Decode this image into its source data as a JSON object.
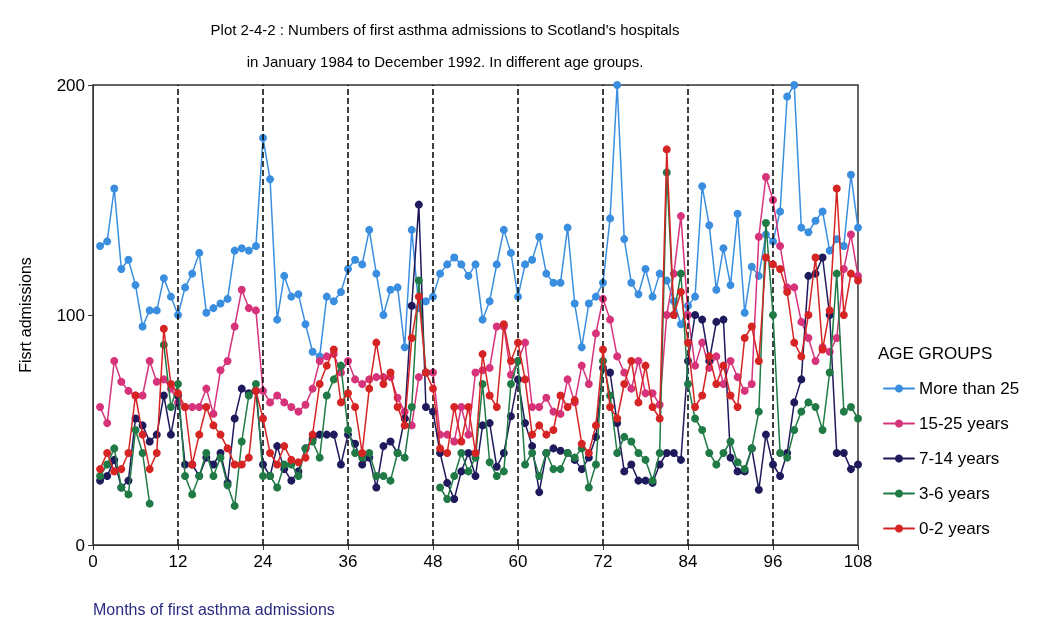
{
  "chart_data": {
    "type": "line",
    "title": "Plot 2-4-2 : Numbers of first asthma admissions to Scotland's hospitals\nin January 1984 to December 1992. In different age groups.",
    "xlabel": "Months of first asthma admissions",
    "ylabel": "Fisrt admissions",
    "legend_title": "AGE GROUPS",
    "legend": "right",
    "marker": "circle",
    "line_style": "solid",
    "grid": false,
    "x": [
      1,
      2,
      3,
      4,
      5,
      6,
      7,
      8,
      9,
      10,
      11,
      12,
      13,
      14,
      15,
      16,
      17,
      18,
      19,
      20,
      21,
      22,
      23,
      24,
      25,
      26,
      27,
      28,
      29,
      30,
      31,
      32,
      33,
      34,
      35,
      36,
      37,
      38,
      39,
      40,
      41,
      42,
      43,
      44,
      45,
      46,
      47,
      48,
      49,
      50,
      51,
      52,
      53,
      54,
      55,
      56,
      57,
      58,
      59,
      60,
      61,
      62,
      63,
      64,
      65,
      66,
      67,
      68,
      69,
      70,
      71,
      72,
      73,
      74,
      75,
      76,
      77,
      78,
      79,
      80,
      81,
      82,
      83,
      84,
      85,
      86,
      87,
      88,
      89,
      90,
      91,
      92,
      93,
      94,
      95,
      96,
      97,
      98,
      99,
      100,
      101,
      102,
      103,
      104,
      105,
      106,
      107,
      108
    ],
    "xlim": [
      0,
      108
    ],
    "xticks": [
      0,
      12,
      24,
      36,
      48,
      60,
      72,
      84,
      96,
      108
    ],
    "ylim": [
      0,
      200
    ],
    "yticks": [
      0,
      100,
      200
    ],
    "series": [
      {
        "name": "More than 25",
        "color": "#3a8ee0",
        "values": [
          130,
          132,
          155,
          120,
          124,
          113,
          95,
          102,
          102,
          116,
          108,
          100,
          112,
          118,
          127,
          101,
          103,
          105,
          107,
          128,
          129,
          128,
          130,
          177,
          159,
          98,
          117,
          108,
          109,
          96,
          84,
          82,
          108,
          106,
          110,
          120,
          124,
          122,
          137,
          118,
          100,
          111,
          112,
          86,
          137,
          103,
          106,
          108,
          118,
          122,
          125,
          122,
          117,
          122,
          98,
          106,
          122,
          137,
          127,
          108,
          122,
          124,
          134,
          118,
          114,
          114,
          138,
          105,
          86,
          105,
          108,
          114,
          142,
          200,
          133,
          114,
          109,
          120,
          108,
          118,
          115,
          106,
          96,
          104,
          108,
          156,
          139,
          111,
          129,
          113,
          144,
          101,
          121,
          117,
          135,
          132,
          145,
          195,
          200,
          138,
          136,
          141,
          145,
          128,
          133,
          130,
          161,
          138
        ]
      },
      {
        "name": "15-25 years",
        "color": "#d6337a",
        "values": [
          60,
          53,
          80,
          71,
          67,
          65,
          65,
          80,
          71,
          72,
          68,
          62,
          60,
          60,
          60,
          68,
          57,
          76,
          80,
          95,
          111,
          103,
          102,
          67,
          62,
          65,
          62,
          60,
          58,
          61,
          68,
          80,
          82,
          83,
          75,
          80,
          72,
          70,
          72,
          73,
          73,
          73,
          64,
          58,
          52,
          73,
          75,
          75,
          48,
          48,
          45,
          60,
          48,
          75,
          76,
          77,
          95,
          95,
          74,
          80,
          88,
          60,
          60,
          64,
          58,
          57,
          72,
          62,
          78,
          70,
          92,
          107,
          98,
          82,
          75,
          68,
          80,
          66,
          66,
          61,
          100,
          118,
          143,
          100,
          78,
          88,
          77,
          82,
          70,
          80,
          73,
          67,
          70,
          134,
          160,
          150,
          130,
          112,
          112,
          97,
          90,
          80,
          86,
          84,
          90,
          120,
          135,
          117
        ]
      },
      {
        "name": "7-14 years",
        "color": "#1f1a5c",
        "values": [
          28,
          30,
          37,
          25,
          28,
          55,
          52,
          45,
          48,
          65,
          48,
          65,
          35,
          35,
          30,
          38,
          35,
          40,
          27,
          55,
          68,
          66,
          67,
          35,
          30,
          43,
          33,
          28,
          32,
          42,
          46,
          48,
          48,
          48,
          35,
          48,
          44,
          35,
          38,
          25,
          43,
          45,
          40,
          55,
          104,
          148,
          60,
          58,
          40,
          27,
          20,
          32,
          40,
          30,
          52,
          53,
          34,
          40,
          56,
          72,
          53,
          43,
          23,
          40,
          42,
          41,
          40,
          37,
          33,
          38,
          47,
          77,
          75,
          53,
          32,
          35,
          28,
          28,
          27,
          35,
          40,
          40,
          37,
          80,
          100,
          98,
          80,
          97,
          98,
          38,
          32,
          32,
          42,
          24,
          48,
          35,
          30,
          40,
          62,
          72,
          117,
          118,
          125,
          100,
          40,
          40,
          33,
          35
        ]
      },
      {
        "name": "3-6 years",
        "color": "#1f7a45",
        "values": [
          30,
          35,
          42,
          25,
          22,
          50,
          40,
          18,
          null,
          87,
          60,
          70,
          30,
          22,
          30,
          40,
          30,
          38,
          26,
          17,
          45,
          65,
          70,
          30,
          30,
          25,
          35,
          35,
          30,
          42,
          45,
          38,
          65,
          72,
          78,
          50,
          40,
          38,
          40,
          30,
          30,
          28,
          40,
          38,
          60,
          115,
          75,
          null,
          25,
          20,
          30,
          40,
          32,
          38,
          70,
          36,
          30,
          32,
          70,
          80,
          35,
          40,
          30,
          40,
          33,
          33,
          40,
          38,
          42,
          25,
          35,
          80,
          65,
          40,
          47,
          45,
          40,
          37,
          28,
          40,
          162,
          100,
          118,
          70,
          55,
          50,
          40,
          35,
          40,
          45,
          36,
          33,
          42,
          58,
          140,
          100,
          40,
          38,
          50,
          58,
          62,
          60,
          50,
          75,
          118,
          58,
          60,
          55
        ]
      },
      {
        "name": "0-2 years",
        "color": "#d62424",
        "values": [
          33,
          40,
          32,
          33,
          40,
          65,
          48,
          33,
          40,
          94,
          70,
          66,
          60,
          35,
          48,
          60,
          52,
          48,
          42,
          35,
          35,
          38,
          67,
          55,
          40,
          35,
          43,
          37,
          36,
          38,
          48,
          70,
          78,
          85,
          62,
          66,
          60,
          40,
          68,
          88,
          70,
          75,
          60,
          52,
          90,
          108,
          75,
          68,
          42,
          40,
          60,
          45,
          60,
          40,
          83,
          65,
          60,
          96,
          80,
          88,
          72,
          48,
          52,
          48,
          50,
          65,
          60,
          63,
          44,
          40,
          52,
          85,
          60,
          55,
          70,
          80,
          62,
          78,
          60,
          55,
          172,
          100,
          110,
          88,
          60,
          65,
          82,
          70,
          78,
          65,
          60,
          90,
          95,
          80,
          125,
          122,
          120,
          110,
          88,
          82,
          100,
          125,
          85,
          102,
          155,
          100,
          118,
          115
        ]
      }
    ],
    "ref_lines": [
      {
        "axis": "x",
        "value": 12,
        "color": "#000000",
        "line_style": "dashed"
      },
      {
        "axis": "x",
        "value": 24,
        "color": "#000000",
        "line_style": "dashed"
      },
      {
        "axis": "x",
        "value": 36,
        "color": "#000000",
        "line_style": "dashed"
      },
      {
        "axis": "x",
        "value": 48,
        "color": "#000000",
        "line_style": "dashed"
      },
      {
        "axis": "x",
        "value": 60,
        "color": "#000000",
        "line_style": "dashed"
      },
      {
        "axis": "x",
        "value": 72,
        "color": "#000000",
        "line_style": "dashed"
      },
      {
        "axis": "x",
        "value": 84,
        "color": "#000000",
        "line_style": "dashed"
      },
      {
        "axis": "x",
        "value": 96,
        "color": "#000000",
        "line_style": "dashed"
      }
    ]
  }
}
